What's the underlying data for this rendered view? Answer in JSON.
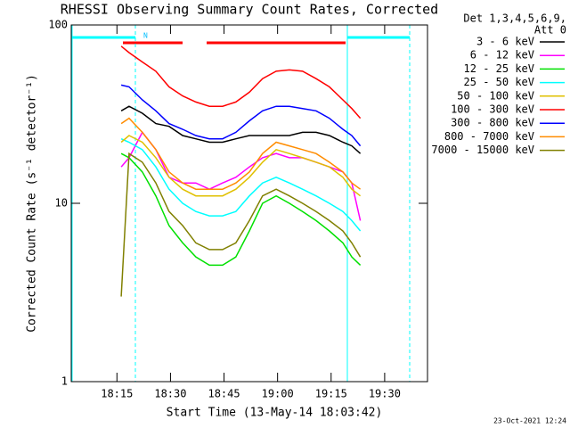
{
  "chart_data": {
    "type": "line",
    "title": "RHESSI Observing Summary Count Rates, Corrected",
    "x_label": "Start Time (13-May-14 18:03:42)",
    "y_label": "Corrected Count Rate (s⁻¹ detector⁻¹)",
    "legend_title": [
      "Det 1,3,4,5,6,9,",
      "Att 0"
    ],
    "annotation": "N",
    "timestamp": "23-Oct-2021 12:24",
    "log_y": true,
    "legend": "right",
    "xlim": [
      2.2,
      102
    ],
    "xticks": [
      {
        "value": 15,
        "label": "18:15"
      },
      {
        "value": 30,
        "label": "18:30"
      },
      {
        "value": 45,
        "label": "18:45"
      },
      {
        "value": 60,
        "label": "19:00"
      },
      {
        "value": 75,
        "label": "19:15"
      },
      {
        "value": 90,
        "label": "19:30"
      }
    ],
    "ylim": [
      1,
      100
    ],
    "yticks": [
      1,
      10,
      100
    ],
    "x": [
      16.2,
      18.4,
      22.1,
      25.9,
      29.6,
      33.4,
      37.1,
      40.9,
      44.6,
      48.3,
      52.1,
      55.8,
      59.6,
      63.3,
      67.0,
      70.8,
      74.5,
      78.3,
      80.8,
      83.2
    ],
    "series": [
      {
        "name": "3 - 6 keV",
        "color": "#000000",
        "values": [
          33,
          35,
          32,
          28,
          27,
          24,
          23,
          22,
          22,
          23,
          24,
          24,
          24,
          24,
          25,
          25,
          24,
          22,
          21,
          19
        ]
      },
      {
        "name": "6 - 12 keV",
        "color": "#ff00ff",
        "values": [
          16,
          18,
          25,
          20,
          14,
          13,
          13,
          12,
          13,
          14,
          16,
          18,
          19,
          18,
          18,
          17,
          16,
          15,
          13,
          8
        ]
      },
      {
        "name": "12 - 25 keV",
        "color": "#00e000",
        "values": [
          19,
          18,
          15,
          11,
          7.5,
          6,
          5,
          4.5,
          4.5,
          5,
          7,
          10,
          11,
          10,
          9,
          8,
          7,
          6,
          5,
          4.5
        ]
      },
      {
        "name": "25 - 50 keV",
        "color": "#00ffff",
        "values": [
          23,
          22,
          20,
          16,
          12,
          10,
          9,
          8.5,
          8.5,
          9,
          11,
          13,
          14,
          13,
          12,
          11,
          10,
          9,
          8,
          7
        ]
      },
      {
        "name": "50 - 100 keV",
        "color": "#e0c000",
        "values": [
          22,
          24,
          22,
          18,
          14,
          12,
          11,
          11,
          11,
          12,
          14,
          17,
          20,
          19,
          18,
          17,
          16,
          14,
          12,
          11
        ]
      },
      {
        "name": "100 - 300 keV",
        "color": "#ff0000",
        "values": [
          76,
          70,
          62,
          55,
          45,
          40,
          37,
          35,
          35,
          37,
          42,
          50,
          55,
          56,
          55,
          50,
          45,
          38,
          34,
          30
        ]
      },
      {
        "name": "300 - 800 keV",
        "color": "#0000ff",
        "values": [
          46,
          45,
          38,
          33,
          28,
          26,
          24,
          23,
          23,
          25,
          29,
          33,
          35,
          35,
          34,
          33,
          30,
          26,
          24,
          21
        ]
      },
      {
        "name": "800 - 7000 keV",
        "color": "#ff8c00",
        "values": [
          28,
          30,
          25,
          20,
          15,
          13,
          12,
          12,
          12,
          13,
          15,
          19,
          22,
          21,
          20,
          19,
          17,
          15,
          13,
          12
        ]
      },
      {
        "name": "7000 - 15000 keV",
        "color": "#808000",
        "values": [
          3,
          19,
          17,
          13,
          9,
          7.5,
          6,
          5.5,
          5.5,
          6,
          8,
          11,
          12,
          11,
          10,
          9,
          8,
          7,
          6,
          5
        ]
      }
    ]
  }
}
